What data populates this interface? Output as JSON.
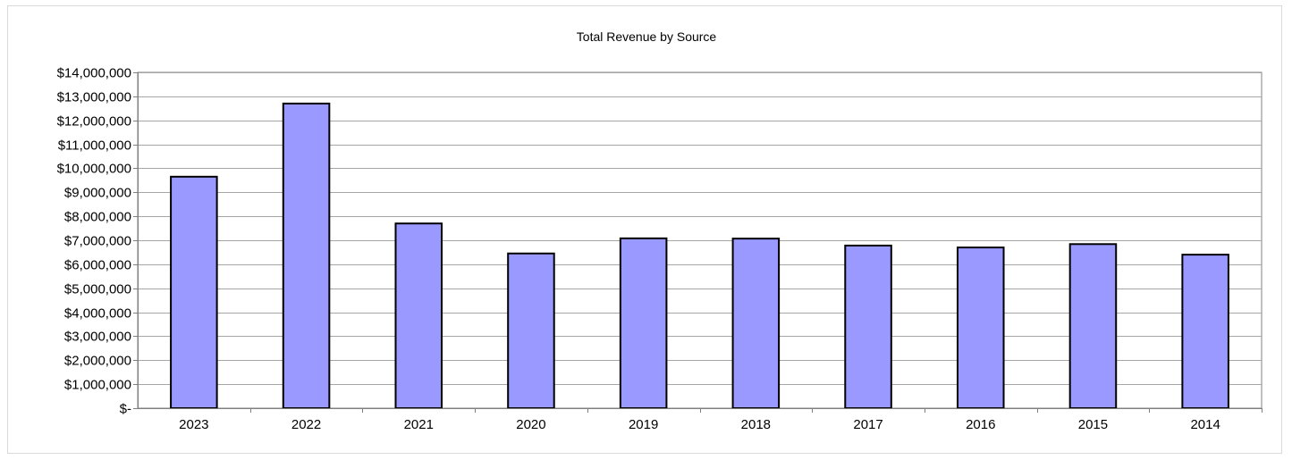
{
  "chart_data": {
    "type": "bar",
    "title": "Total Revenue by Source",
    "categories": [
      "2023",
      "2022",
      "2021",
      "2020",
      "2019",
      "2018",
      "2017",
      "2016",
      "2015",
      "2014"
    ],
    "values": [
      9650000,
      12700000,
      7700000,
      6450000,
      7080000,
      7070000,
      6780000,
      6700000,
      6840000,
      6400000
    ],
    "ylim": [
      0,
      14000000
    ],
    "y_tick_step": 1000000,
    "y_tick_labels": [
      "$-",
      "$1,000,000",
      "$2,000,000",
      "$3,000,000",
      "$4,000,000",
      "$5,000,000",
      "$6,000,000",
      "$7,000,000",
      "$8,000,000",
      "$9,000,000",
      "$10,000,000",
      "$11,000,000",
      "$12,000,000",
      "$13,000,000",
      "$14,000,000"
    ],
    "xlabel": "",
    "ylabel": "",
    "grid": true,
    "legend": "none",
    "colors": {
      "bar_fill": "#9999FF",
      "bar_stroke": "#000000",
      "gridline": "#A6A6A6",
      "axis": "#808080"
    }
  }
}
